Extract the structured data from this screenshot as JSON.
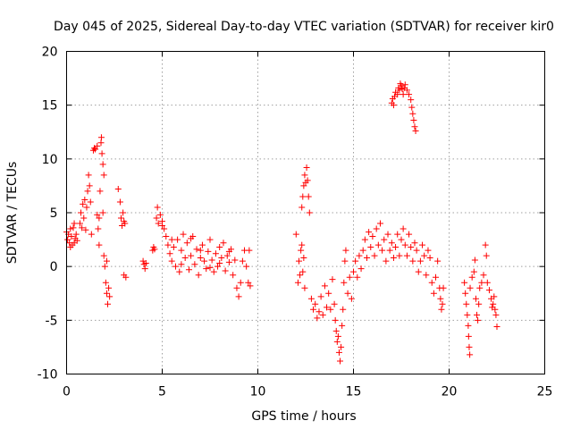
{
  "chart_data": {
    "type": "scatter",
    "title": "Day 045 of 2025, Sidereal Day-to-day VTEC variation (SDTVAR) for receiver kir0",
    "xlabel": "GPS time / hours",
    "ylabel": "SDTVAR / TECUs",
    "xlim": [
      0,
      25
    ],
    "ylim": [
      -10,
      20
    ],
    "xticks": [
      0,
      5,
      10,
      15,
      20,
      25
    ],
    "yticks": [
      -10,
      -5,
      0,
      5,
      10,
      15,
      20
    ],
    "xtick_labels": [
      "0",
      "5",
      "10",
      "15",
      "20",
      "25"
    ],
    "ytick_labels": [
      "-10",
      "-5",
      "0",
      "5",
      "10",
      "15",
      "20"
    ],
    "grid": true,
    "marker": "+",
    "color": "#ff0000",
    "series": [
      {
        "name": "SDTVAR",
        "points": [
          [
            0.0,
            3.2
          ],
          [
            0.05,
            2.5
          ],
          [
            0.1,
            3.0
          ],
          [
            0.15,
            2.2
          ],
          [
            0.2,
            3.5
          ],
          [
            0.25,
            2.8
          ],
          [
            0.3,
            2.0
          ],
          [
            0.35,
            3.6
          ],
          [
            0.4,
            4.0
          ],
          [
            0.45,
            2.6
          ],
          [
            0.5,
            3.0
          ],
          [
            0.55,
            2.4
          ],
          [
            0.2,
            1.8
          ],
          [
            0.4,
            2.2
          ],
          [
            0.7,
            4.0
          ],
          [
            0.75,
            5.0
          ],
          [
            0.8,
            3.6
          ],
          [
            0.85,
            5.8
          ],
          [
            0.9,
            4.5
          ],
          [
            0.95,
            6.2
          ],
          [
            1.0,
            3.4
          ],
          [
            1.05,
            5.5
          ],
          [
            1.1,
            7.0
          ],
          [
            1.15,
            8.5
          ],
          [
            1.2,
            7.5
          ],
          [
            1.25,
            6.0
          ],
          [
            1.3,
            3.0
          ],
          [
            1.4,
            10.8
          ],
          [
            1.45,
            11.0
          ],
          [
            1.5,
            10.9
          ],
          [
            1.6,
            11.2
          ],
          [
            1.6,
            4.8
          ],
          [
            1.65,
            3.5
          ],
          [
            1.7,
            2.0
          ],
          [
            1.7,
            4.5
          ],
          [
            1.75,
            7.0
          ],
          [
            1.8,
            11.5
          ],
          [
            1.82,
            12.0
          ],
          [
            1.85,
            10.5
          ],
          [
            1.9,
            9.5
          ],
          [
            1.95,
            8.5
          ],
          [
            1.9,
            5.0
          ],
          [
            1.95,
            1.0
          ],
          [
            2.0,
            0.0
          ],
          [
            2.05,
            -1.5
          ],
          [
            2.1,
            -2.5
          ],
          [
            2.15,
            -3.5
          ],
          [
            2.2,
            -2.0
          ],
          [
            2.25,
            -2.8
          ],
          [
            2.1,
            0.5
          ],
          [
            2.7,
            7.2
          ],
          [
            2.8,
            6.0
          ],
          [
            2.85,
            4.5
          ],
          [
            2.9,
            3.8
          ],
          [
            2.95,
            5.0
          ],
          [
            3.0,
            4.2
          ],
          [
            3.05,
            4.0
          ],
          [
            3.1,
            -1.0
          ],
          [
            3.0,
            -0.8
          ],
          [
            4.0,
            0.5
          ],
          [
            4.05,
            0.2
          ],
          [
            4.1,
            -0.2
          ],
          [
            4.15,
            0.3
          ],
          [
            4.5,
            1.5
          ],
          [
            4.55,
            1.8
          ],
          [
            4.6,
            1.6
          ],
          [
            4.7,
            4.5
          ],
          [
            4.75,
            5.5
          ],
          [
            4.8,
            4.0
          ],
          [
            4.9,
            4.8
          ],
          [
            5.0,
            3.8
          ],
          [
            5.1,
            3.5
          ],
          [
            5.2,
            2.8
          ],
          [
            5.3,
            2.0
          ],
          [
            5.4,
            1.2
          ],
          [
            5.5,
            0.5
          ],
          [
            5.6,
            1.8
          ],
          [
            5.7,
            0.0
          ],
          [
            5.8,
            2.5
          ],
          [
            5.9,
            -0.5
          ],
          [
            6.0,
            1.5
          ],
          [
            6.1,
            3.0
          ],
          [
            6.2,
            0.8
          ],
          [
            6.3,
            2.2
          ],
          [
            6.4,
            -0.3
          ],
          [
            6.5,
            1.0
          ],
          [
            6.6,
            2.8
          ],
          [
            6.7,
            0.2
          ],
          [
            6.8,
            1.6
          ],
          [
            6.9,
            -0.8
          ],
          [
            7.0,
            0.8
          ],
          [
            7.1,
            2.0
          ],
          [
            7.2,
            0.5
          ],
          [
            7.3,
            -0.2
          ],
          [
            7.4,
            1.4
          ],
          [
            7.5,
            2.5
          ],
          [
            7.6,
            0.6
          ],
          [
            7.7,
            -0.5
          ],
          [
            7.8,
            1.2
          ],
          [
            7.9,
            0.0
          ],
          [
            8.0,
            1.8
          ],
          [
            8.1,
            0.8
          ],
          [
            8.2,
            2.2
          ],
          [
            8.3,
            -0.4
          ],
          [
            8.4,
            1.0
          ],
          [
            8.5,
            0.4
          ],
          [
            8.6,
            1.6
          ],
          [
            8.7,
            -0.8
          ],
          [
            8.8,
            0.6
          ],
          [
            8.9,
            -2.0
          ],
          [
            9.0,
            -2.8
          ],
          [
            9.1,
            -1.5
          ],
          [
            9.2,
            0.5
          ],
          [
            9.3,
            1.5
          ],
          [
            9.4,
            0.0
          ],
          [
            9.5,
            -1.5
          ],
          [
            9.55,
            1.5
          ],
          [
            9.6,
            -1.8
          ],
          [
            5.0,
            4.2
          ],
          [
            5.5,
            2.5
          ],
          [
            6.0,
            0.2
          ],
          [
            6.5,
            2.6
          ],
          [
            7.0,
            1.5
          ],
          [
            7.5,
            -0.1
          ],
          [
            8.0,
            0.3
          ],
          [
            8.5,
            1.4
          ],
          [
            12.0,
            3.0
          ],
          [
            12.1,
            -1.5
          ],
          [
            12.15,
            0.5
          ],
          [
            12.2,
            -0.8
          ],
          [
            12.25,
            1.5
          ],
          [
            12.3,
            2.0
          ],
          [
            12.35,
            -0.5
          ],
          [
            12.4,
            0.8
          ],
          [
            12.45,
            -2.0
          ],
          [
            12.3,
            5.5
          ],
          [
            12.35,
            6.5
          ],
          [
            12.4,
            7.5
          ],
          [
            12.45,
            8.5
          ],
          [
            12.5,
            7.8
          ],
          [
            12.55,
            9.2
          ],
          [
            12.6,
            8.0
          ],
          [
            12.65,
            6.5
          ],
          [
            12.7,
            5.0
          ],
          [
            12.8,
            -3.0
          ],
          [
            12.9,
            -4.0
          ],
          [
            13.0,
            -3.5
          ],
          [
            13.1,
            -4.8
          ],
          [
            13.2,
            -4.2
          ],
          [
            13.3,
            -2.8
          ],
          [
            13.4,
            -4.5
          ],
          [
            13.5,
            -1.8
          ],
          [
            13.6,
            -3.8
          ],
          [
            13.7,
            -2.5
          ],
          [
            13.8,
            -4.0
          ],
          [
            13.9,
            -1.2
          ],
          [
            14.0,
            -3.5
          ],
          [
            14.05,
            -5.0
          ],
          [
            14.1,
            -6.0
          ],
          [
            14.15,
            -7.0
          ],
          [
            14.2,
            -6.5
          ],
          [
            14.25,
            -8.0
          ],
          [
            14.3,
            -8.8
          ],
          [
            14.35,
            -7.5
          ],
          [
            14.4,
            -5.5
          ],
          [
            14.45,
            -4.0
          ],
          [
            14.5,
            -1.5
          ],
          [
            14.55,
            0.5
          ],
          [
            14.6,
            1.5
          ],
          [
            14.7,
            -2.5
          ],
          [
            14.8,
            -1.0
          ],
          [
            14.9,
            -3.0
          ],
          [
            15.0,
            -0.5
          ],
          [
            15.1,
            0.5
          ],
          [
            15.2,
            -1.0
          ],
          [
            15.3,
            1.0
          ],
          [
            15.4,
            -0.2
          ],
          [
            15.5,
            1.5
          ],
          [
            15.6,
            2.5
          ],
          [
            15.7,
            0.8
          ],
          [
            15.8,
            3.2
          ],
          [
            15.9,
            1.8
          ],
          [
            16.0,
            2.8
          ],
          [
            16.1,
            1.0
          ],
          [
            16.2,
            3.5
          ],
          [
            16.3,
            2.0
          ],
          [
            16.4,
            4.0
          ],
          [
            16.5,
            1.5
          ],
          [
            16.6,
            2.5
          ],
          [
            16.7,
            0.5
          ],
          [
            16.8,
            3.0
          ],
          [
            16.9,
            1.5
          ],
          [
            17.0,
            2.2
          ],
          [
            17.1,
            0.8
          ],
          [
            17.2,
            1.8
          ],
          [
            17.3,
            3.0
          ],
          [
            17.4,
            1.0
          ],
          [
            17.5,
            2.5
          ],
          [
            17.6,
            3.5
          ],
          [
            17.7,
            2.0
          ],
          [
            17.8,
            1.0
          ],
          [
            17.9,
            3.0
          ],
          [
            18.0,
            1.8
          ],
          [
            18.1,
            0.5
          ],
          [
            18.2,
            2.2
          ],
          [
            18.3,
            1.5
          ],
          [
            18.4,
            -0.5
          ],
          [
            18.5,
            0.5
          ],
          [
            18.6,
            2.0
          ],
          [
            18.7,
            1.0
          ],
          [
            18.8,
            -0.8
          ],
          [
            18.9,
            1.5
          ],
          [
            19.0,
            0.8
          ],
          [
            19.1,
            -1.5
          ],
          [
            19.2,
            -2.5
          ],
          [
            19.3,
            -1.0
          ],
          [
            19.4,
            0.5
          ],
          [
            19.5,
            -2.0
          ],
          [
            19.55,
            -3.0
          ],
          [
            19.6,
            -4.0
          ],
          [
            19.65,
            -3.5
          ],
          [
            19.7,
            -2.0
          ],
          [
            17.0,
            15.2
          ],
          [
            17.05,
            15.6
          ],
          [
            17.1,
            15.0
          ],
          [
            17.15,
            15.8
          ],
          [
            17.2,
            16.2
          ],
          [
            17.3,
            16.0
          ],
          [
            17.35,
            16.6
          ],
          [
            17.4,
            16.4
          ],
          [
            17.45,
            17.0
          ],
          [
            17.5,
            16.8
          ],
          [
            17.55,
            16.5
          ],
          [
            17.6,
            16.0
          ],
          [
            17.65,
            16.6
          ],
          [
            17.7,
            16.9
          ],
          [
            17.8,
            16.4
          ],
          [
            17.9,
            16.0
          ],
          [
            18.0,
            15.5
          ],
          [
            18.05,
            14.8
          ],
          [
            18.1,
            14.2
          ],
          [
            18.15,
            13.6
          ],
          [
            18.2,
            13.0
          ],
          [
            18.25,
            12.6
          ],
          [
            20.8,
            -1.5
          ],
          [
            20.85,
            -2.5
          ],
          [
            20.9,
            -3.5
          ],
          [
            20.95,
            -4.5
          ],
          [
            21.0,
            -5.5
          ],
          [
            21.02,
            -6.5
          ],
          [
            21.05,
            -7.5
          ],
          [
            21.08,
            -8.2
          ],
          [
            21.1,
            -2.0
          ],
          [
            21.2,
            -1.0
          ],
          [
            21.3,
            -0.5
          ],
          [
            21.35,
            0.6
          ],
          [
            21.4,
            -3.0
          ],
          [
            21.45,
            -4.5
          ],
          [
            21.5,
            -5.0
          ],
          [
            21.55,
            -3.5
          ],
          [
            21.6,
            -2.0
          ],
          [
            21.7,
            -1.5
          ],
          [
            21.8,
            -0.8
          ],
          [
            21.9,
            2.0
          ],
          [
            21.95,
            1.0
          ],
          [
            22.0,
            -1.5
          ],
          [
            22.1,
            -2.2
          ],
          [
            22.2,
            -3.0
          ],
          [
            22.3,
            -3.5
          ],
          [
            22.4,
            -4.0
          ],
          [
            22.45,
            -4.5
          ],
          [
            22.5,
            -5.6
          ],
          [
            22.35,
            -2.8
          ],
          [
            22.25,
            -3.8
          ]
        ]
      }
    ]
  }
}
